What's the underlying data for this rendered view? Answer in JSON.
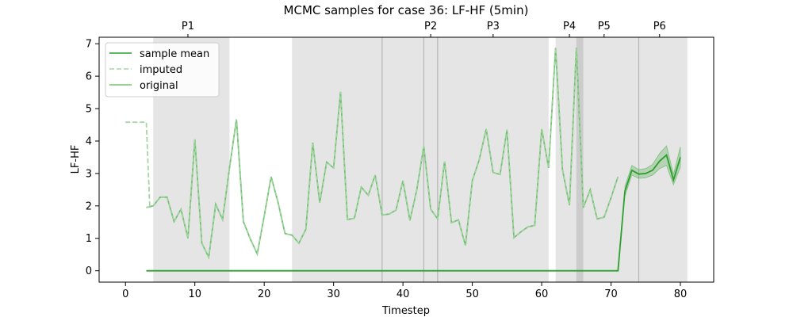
{
  "chart_data": {
    "type": "line",
    "title": "MCMC samples for case 36: LF-HF (5min)",
    "xlabel": "Timestep",
    "ylabel": "LF-HF",
    "xlim": [
      -3.8,
      84.8
    ],
    "ylim": [
      -0.35,
      7.2
    ],
    "xticks": [
      0,
      10,
      20,
      30,
      40,
      50,
      60,
      70,
      80
    ],
    "yticks": [
      0,
      1,
      2,
      3,
      4,
      5,
      6,
      7
    ],
    "grid": false,
    "legend_position": "top-left",
    "colors": {
      "mean": "#2ca02c",
      "imputed": "#a6d5a6",
      "original": "#72c172",
      "phase_shade": "#e5e5e5",
      "phase_line": "#b5b5b5",
      "overlap_shade": "#cccccc"
    },
    "legend": [
      {
        "key": "mean",
        "label": "sample mean",
        "style": "solid"
      },
      {
        "key": "imputed",
        "label": "imputed",
        "style": "dashed"
      },
      {
        "key": "original",
        "label": "original",
        "style": "solid"
      }
    ],
    "phases": [
      {
        "label": "P1",
        "start": 4,
        "end": 15,
        "label_x": 9
      },
      {
        "label": "P2",
        "start": 24,
        "end": 45,
        "label_x": 44
      },
      {
        "label": "P3",
        "start": 45,
        "end": 61,
        "label_x": 53
      },
      {
        "label": "P4",
        "start": 62,
        "end": 66,
        "label_x": 64
      },
      {
        "label": "P5",
        "start": 65,
        "end": 74,
        "label_x": 69
      },
      {
        "label": "P6",
        "start": 74,
        "end": 81,
        "label_x": 77
      }
    ],
    "phase_boundaries": [
      37,
      43,
      45,
      74
    ],
    "overlap_region": [
      65,
      66
    ],
    "imputed_series": {
      "x": [
        0,
        1,
        2,
        3,
        3.5
      ],
      "y": [
        4.58,
        4.58,
        4.58,
        4.58,
        1.95
      ]
    },
    "original_series": {
      "x": [
        3,
        4,
        5,
        6,
        7,
        8,
        9,
        10,
        11,
        12,
        13,
        14,
        15,
        16,
        17,
        18,
        19,
        20,
        21,
        22,
        23,
        24,
        25,
        26,
        27,
        28,
        29,
        30,
        31,
        32,
        33,
        34,
        35,
        36,
        37,
        38,
        39,
        40,
        41,
        42,
        43,
        44,
        45,
        46,
        47,
        48,
        49,
        50,
        51,
        52,
        53,
        54,
        55,
        56,
        57,
        58,
        59,
        60,
        61,
        62,
        63,
        64,
        65,
        66,
        67,
        68,
        69,
        70,
        71
      ],
      "y": [
        1.95,
        2.0,
        2.27,
        2.27,
        1.52,
        1.9,
        1.0,
        4.05,
        0.85,
        0.42,
        2.05,
        1.58,
        3.17,
        4.67,
        1.52,
        0.98,
        0.52,
        1.69,
        2.9,
        2.1,
        1.15,
        1.1,
        0.85,
        1.28,
        3.95,
        2.1,
        3.35,
        3.17,
        5.52,
        1.58,
        1.62,
        2.58,
        2.33,
        2.95,
        1.72,
        1.75,
        1.87,
        2.78,
        1.55,
        2.5,
        3.83,
        1.9,
        1.6,
        3.37,
        1.48,
        1.57,
        0.78,
        2.78,
        3.42,
        4.37,
        3.03,
        2.97,
        4.35,
        1.02,
        1.2,
        1.35,
        1.4,
        4.37,
        3.17,
        6.87,
        3.12,
        2.02,
        6.88,
        1.95,
        2.5,
        1.6,
        1.65,
        2.25,
        2.9
      ]
    },
    "tail_series": {
      "x": [
        72,
        73,
        74,
        75,
        76,
        77,
        78,
        79,
        80
      ],
      "y": [
        2.45,
        3.1,
        2.98,
        3.0,
        3.1,
        3.38,
        3.57,
        2.8,
        3.5
      ],
      "band_low": [
        2.3,
        2.95,
        2.85,
        2.87,
        2.95,
        3.15,
        3.25,
        2.65,
        3.2
      ],
      "band_high": [
        2.6,
        3.25,
        3.12,
        3.15,
        3.28,
        3.62,
        3.85,
        2.98,
        3.82
      ]
    },
    "mean_series": {
      "x": [
        3,
        71,
        72,
        73,
        74,
        75,
        76,
        77,
        78,
        79,
        80
      ],
      "y": [
        0,
        0,
        2.45,
        3.1,
        2.98,
        3.0,
        3.1,
        3.38,
        3.57,
        2.8,
        3.5
      ]
    }
  }
}
